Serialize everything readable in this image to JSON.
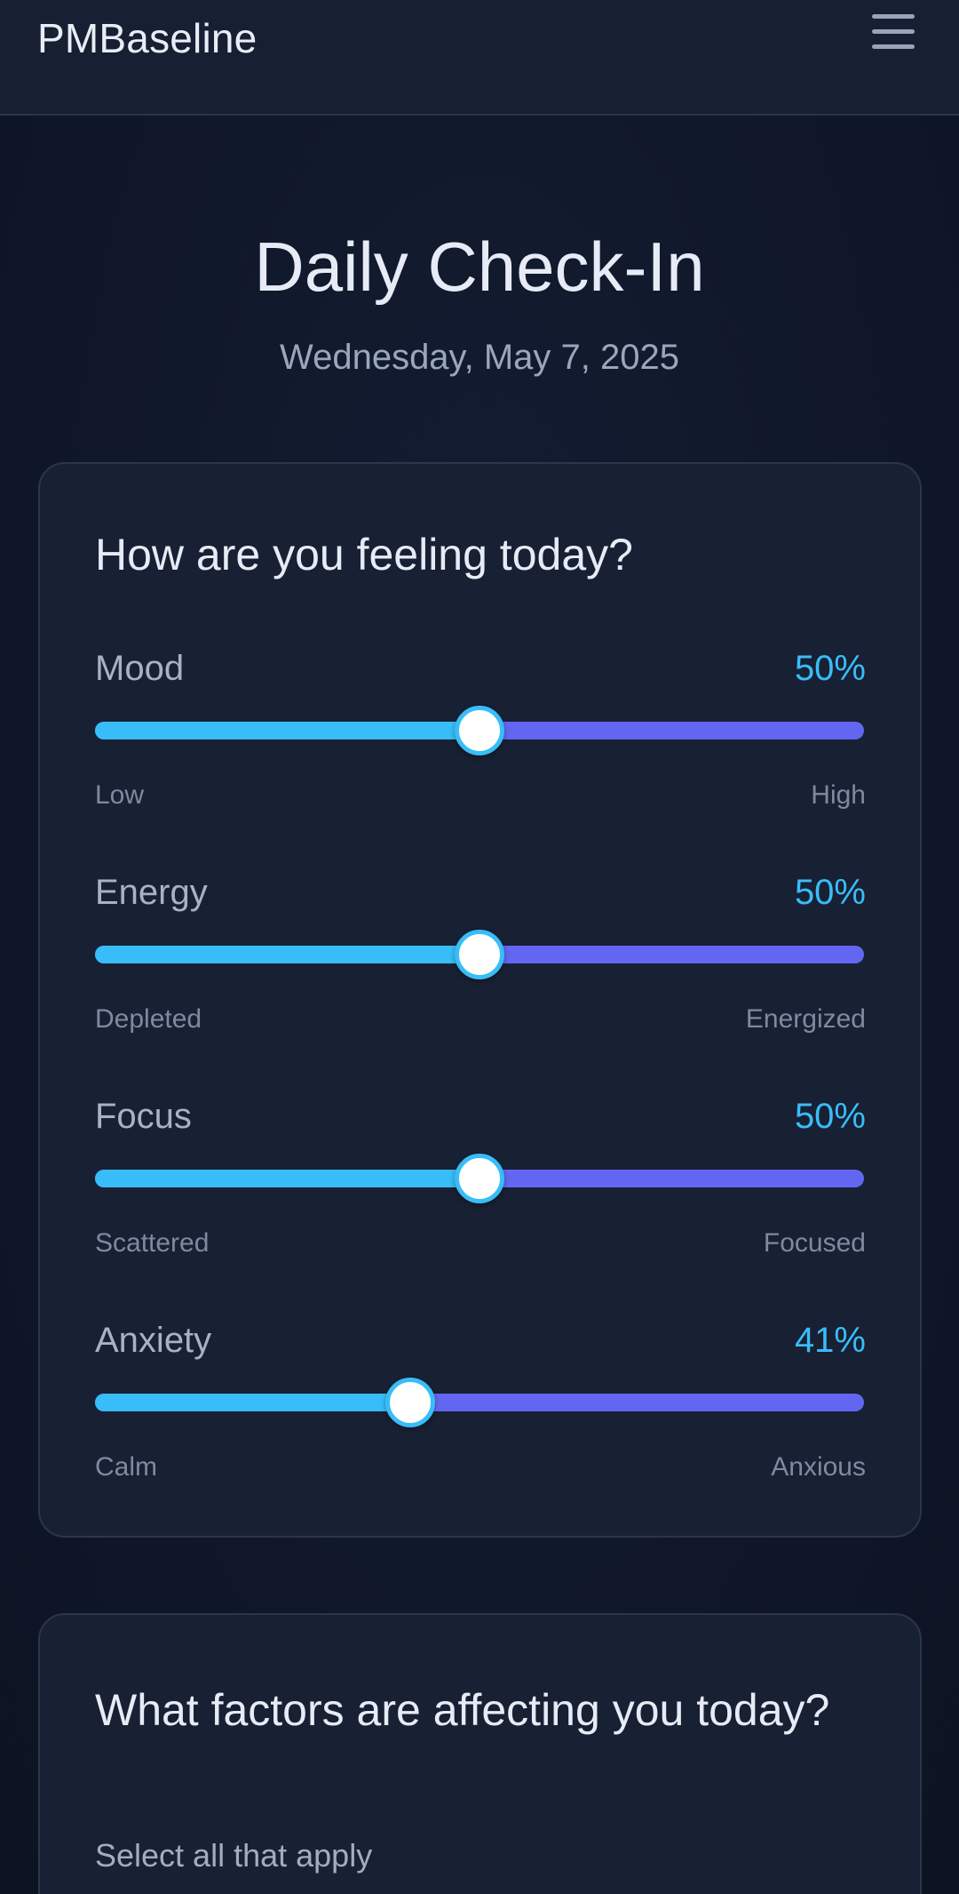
{
  "header": {
    "brand": "PMBaseline",
    "menu_icon": "hamburger-menu-icon"
  },
  "page": {
    "title": "Daily Check-In",
    "date": "Wednesday, May 7, 2025"
  },
  "colors": {
    "accent": "#38bdf8",
    "track": "#6366f1",
    "card_bg": "#182033",
    "page_bg": "#0f1628"
  },
  "feelings": {
    "heading": "How are you feeling today?",
    "sliders": [
      {
        "name": "Mood",
        "value": 50,
        "value_label": "50%",
        "min_label": "Low",
        "max_label": "High"
      },
      {
        "name": "Energy",
        "value": 50,
        "value_label": "50%",
        "min_label": "Depleted",
        "max_label": "Energized"
      },
      {
        "name": "Focus",
        "value": 50,
        "value_label": "50%",
        "min_label": "Scattered",
        "max_label": "Focused"
      },
      {
        "name": "Anxiety",
        "value": 41,
        "value_label": "41%",
        "min_label": "Calm",
        "max_label": "Anxious"
      }
    ]
  },
  "factors": {
    "heading": "What factors are affecting you today?",
    "subtext": "Select all that apply"
  }
}
